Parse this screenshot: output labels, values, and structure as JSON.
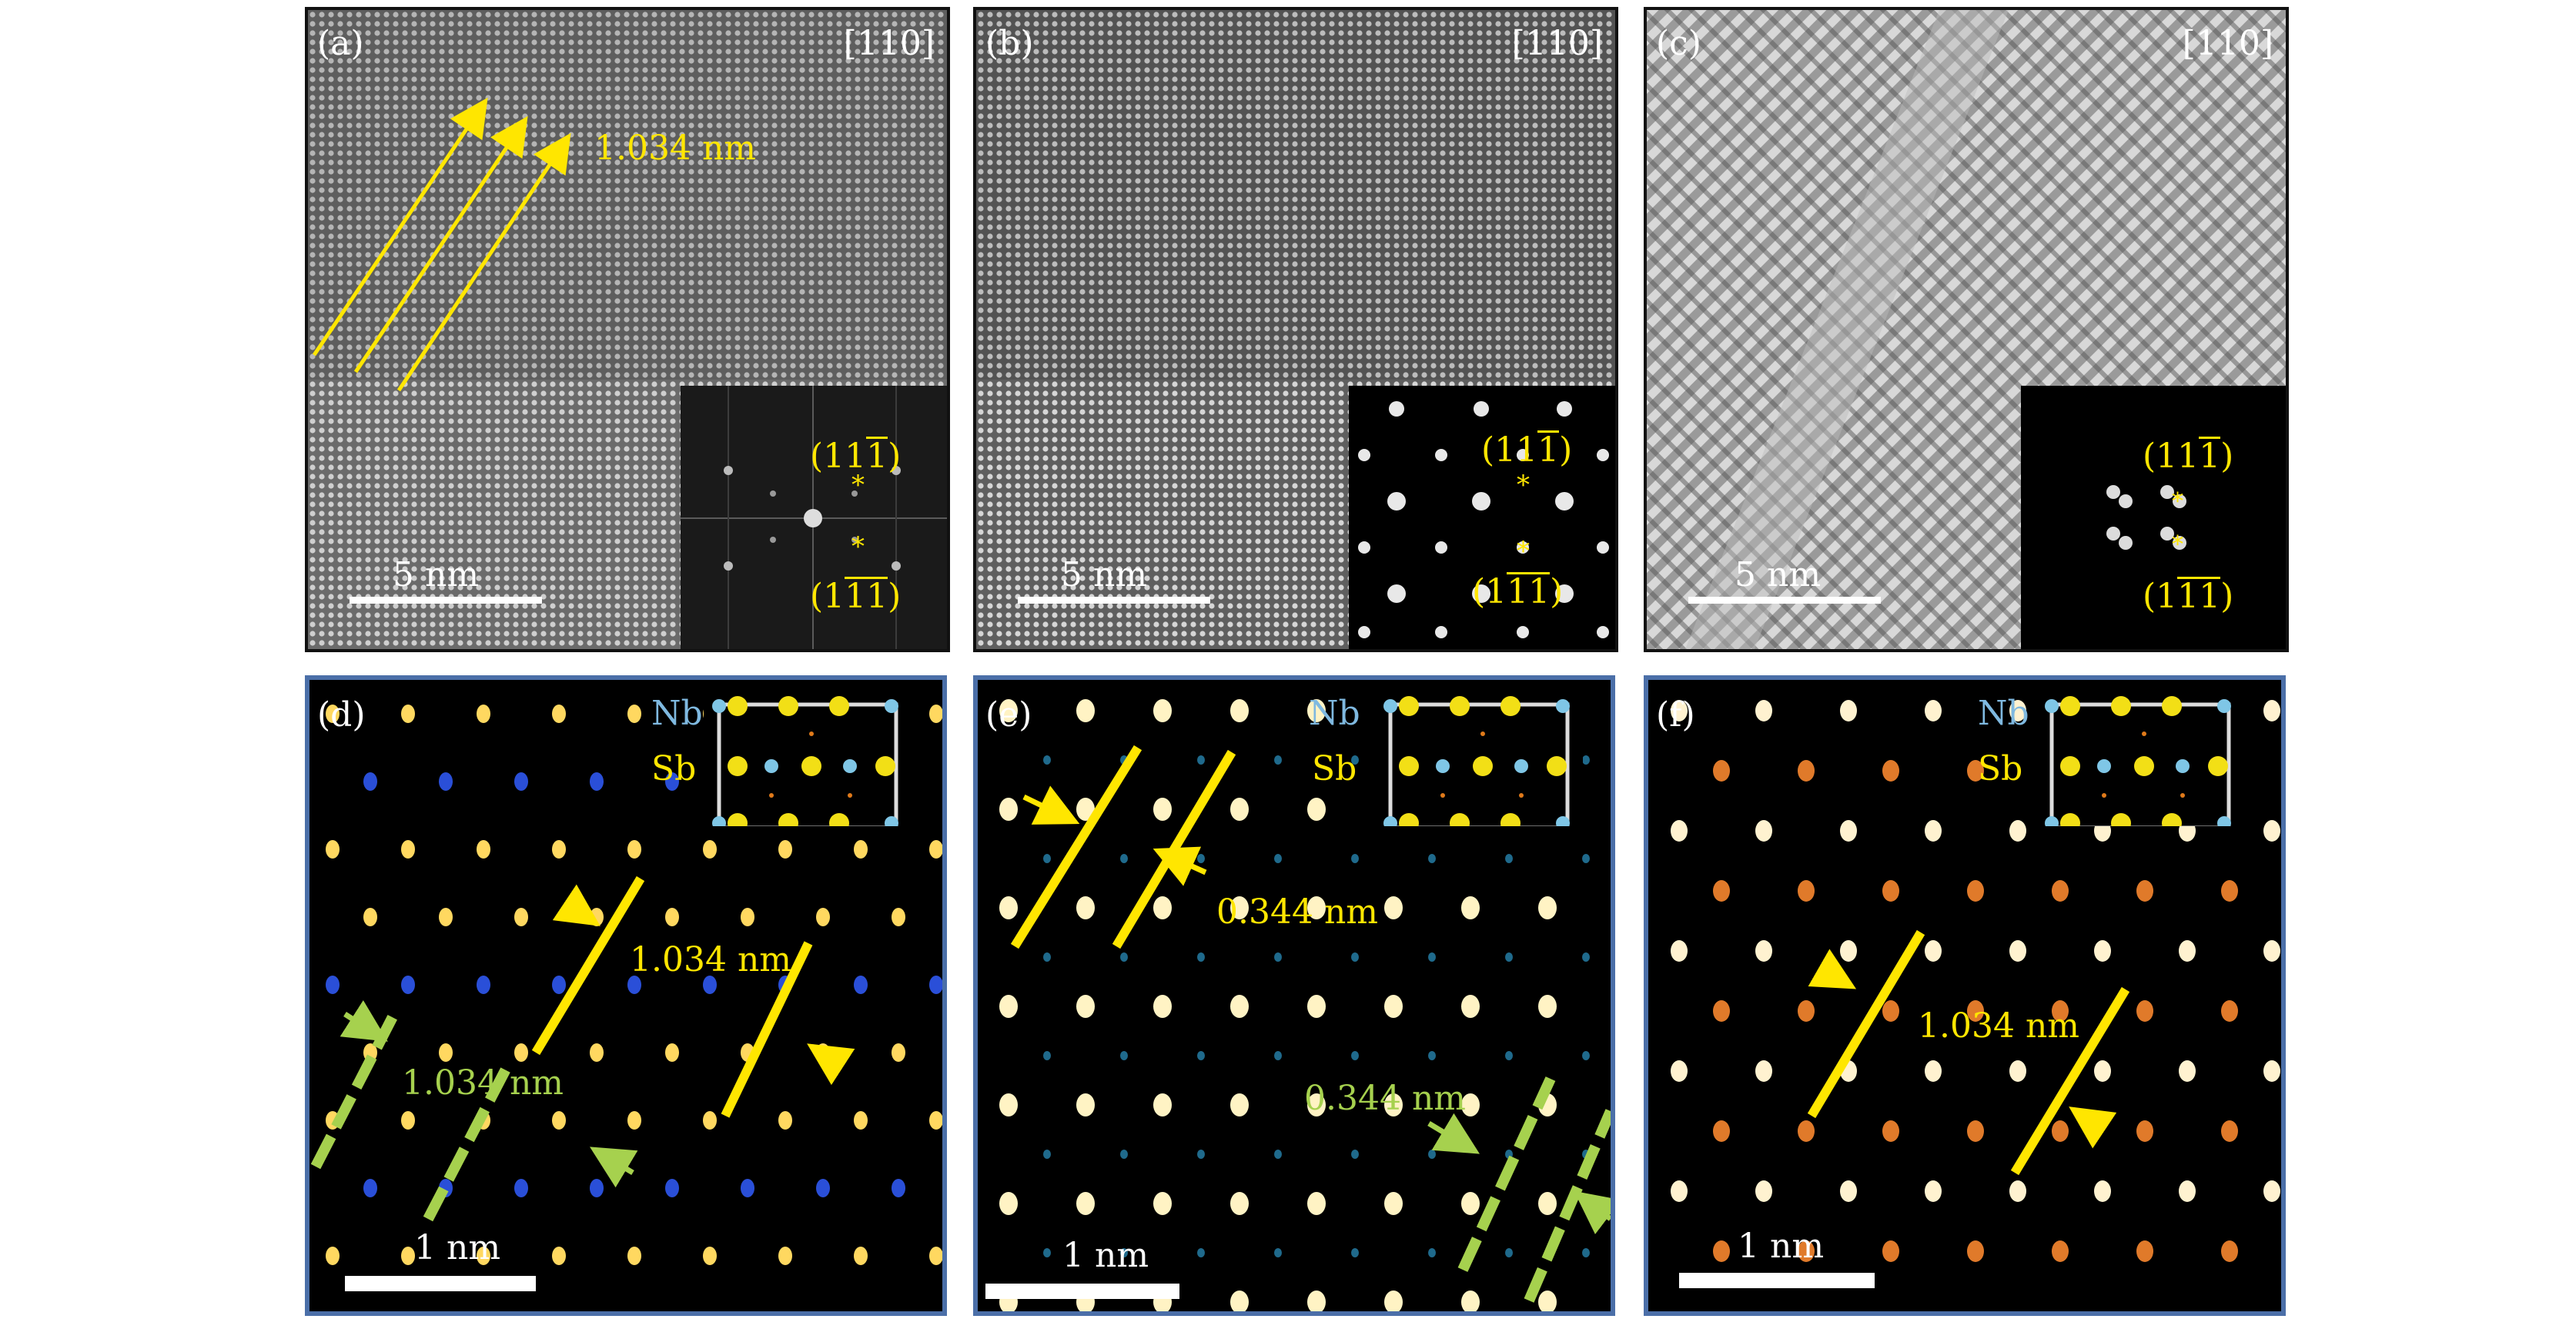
{
  "panels": {
    "a": {
      "label": "(a)",
      "zone": "[110]",
      "spacing": "1.034 nm",
      "scale": "5 nm",
      "fft_top": {
        "pre": "(11",
        "bar": "1",
        "post": ")"
      },
      "fft_bot": {
        "pre": "(1",
        "bar1": "1",
        "bar2": "1",
        "post": ")"
      }
    },
    "b": {
      "label": "(b)",
      "zone": "[110]",
      "scale": "5 nm",
      "fft_top": {
        "pre": "(11",
        "bar": "1",
        "post": ")"
      },
      "fft_bot": {
        "pre": "(1",
        "bar1": "1",
        "bar2": "1",
        "post": ")"
      }
    },
    "c": {
      "label": "(c)",
      "zone": "[110]",
      "scale": "5 nm",
      "fft_top": {
        "pre": "(11",
        "bar": "1",
        "post": ")"
      },
      "fft_bot": {
        "pre": "(1",
        "bar1": "1",
        "bar2": "1",
        "post": ")"
      }
    },
    "d": {
      "label": "(d)",
      "nb": "Nb",
      "sb": "Sb",
      "spacing_yellow": "1.034 nm",
      "spacing_green": "1.034 nm",
      "scale": "1 nm"
    },
    "e": {
      "label": "(e)",
      "nb": "Nb",
      "sb": "Sb",
      "spacing_yellow": "0.344 nm",
      "spacing_green": "0.344 nm",
      "scale": "1 nm"
    },
    "f": {
      "label": "(f)",
      "nb": "Nb",
      "sb": "Sb",
      "spacing_yellow": "1.034 nm",
      "scale": "1 nm"
    }
  },
  "colors": {
    "yellow": "#ffe600",
    "green": "#a6d14e",
    "nb_atom": "#7fc6e6",
    "sb_atom": "#f2df16",
    "frame_top": "#111111",
    "frame_bottom": "#4b6fa8"
  }
}
